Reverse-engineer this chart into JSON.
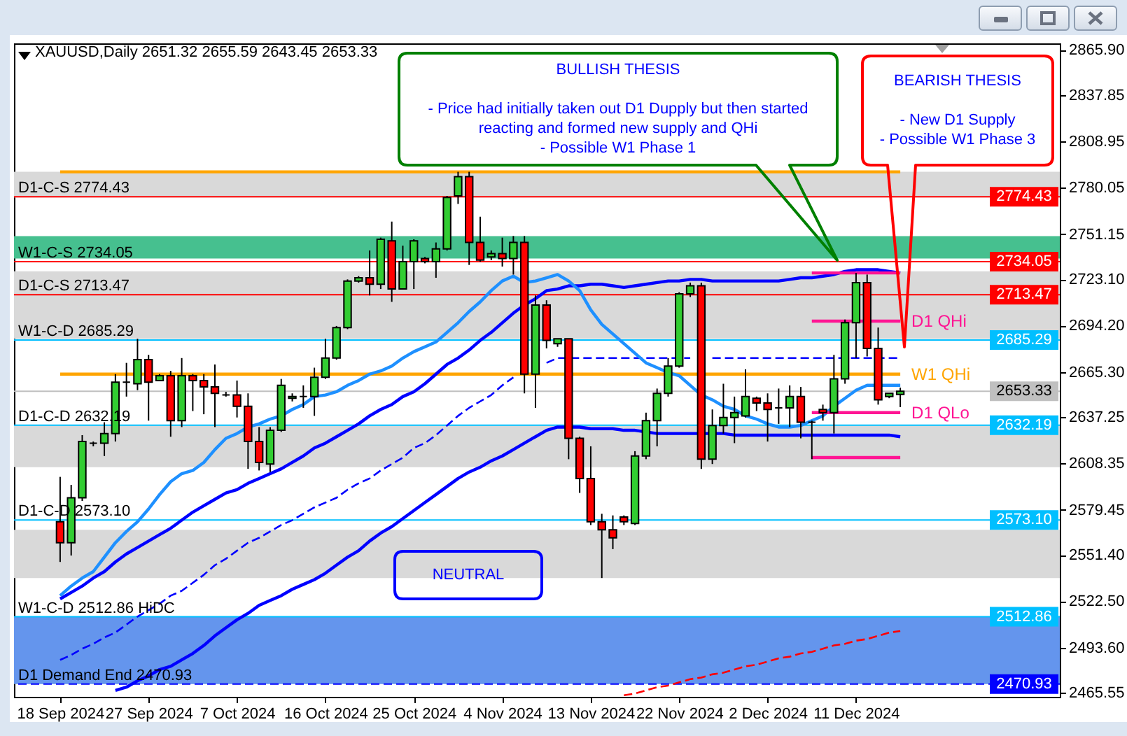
{
  "chart_data": {
    "type": "candlestick",
    "title": "XAUUSD,Daily 2651.32 2655.59 2643.45 2653.33",
    "categories": [
      "18 Sep 2024",
      null,
      null,
      null,
      null,
      null,
      null,
      null,
      "27 Sep 2024",
      null,
      null,
      null,
      null,
      null,
      null,
      null,
      "7 Oct 2024",
      null,
      null,
      null,
      null,
      null,
      null,
      null,
      "16 Oct 2024",
      null,
      null,
      null,
      null,
      null,
      null,
      null,
      "25 Oct 2024",
      null,
      null,
      null,
      null,
      null,
      null,
      null,
      "4 Nov 2024",
      null,
      null,
      null,
      null,
      null,
      null,
      null,
      "13 Nov 2024",
      null,
      null,
      null,
      null,
      null,
      null,
      null,
      "22 Nov 2024",
      null,
      null,
      null,
      null,
      null,
      null,
      null,
      "2 Dec 2024",
      null,
      null,
      null,
      null,
      null,
      null,
      null,
      "11 Dec 2024",
      null,
      null,
      null,
      null
    ],
    "ohlc": [
      [
        2572,
        2600,
        2547,
        2559
      ],
      [
        2559,
        2595,
        2551,
        2587
      ],
      [
        2587,
        2626,
        2585,
        2622
      ],
      [
        2621,
        2622,
        2619,
        2621
      ],
      [
        2621,
        2634,
        2613,
        2627
      ],
      [
        2627,
        2664,
        2622,
        2659
      ],
      [
        2659,
        2671,
        2650,
        2659
      ],
      [
        2658,
        2686,
        2654,
        2673
      ],
      [
        2673,
        2676,
        2635,
        2659
      ],
      [
        2660,
        2664,
        2660,
        2663
      ],
      [
        2663,
        2666,
        2625,
        2635
      ],
      [
        2635,
        2674,
        2631,
        2663
      ],
      [
        2663,
        2664,
        2641,
        2660
      ],
      [
        2660,
        2664,
        2639,
        2656
      ],
      [
        2656,
        2670,
        2631,
        2652
      ],
      [
        2651,
        2653,
        2650,
        2651
      ],
      [
        2651,
        2660,
        2637,
        2644
      ],
      [
        2644,
        2652,
        2605,
        2622
      ],
      [
        2622,
        2631,
        2604,
        2609
      ],
      [
        2608,
        2631,
        2603,
        2629
      ],
      [
        2629,
        2661,
        2628,
        2657
      ],
      [
        2649,
        2652,
        2647,
        2650
      ],
      [
        2650,
        2657,
        2643,
        2650
      ],
      [
        2650,
        2668,
        2638,
        2662
      ],
      [
        2662,
        2686,
        2661,
        2674
      ],
      [
        2674,
        2694,
        2673,
        2693
      ],
      [
        2693,
        2723,
        2692,
        2722
      ],
      [
        2722,
        2725,
        2721,
        2724
      ],
      [
        2724,
        2741,
        2713,
        2720
      ],
      [
        2720,
        2749,
        2717,
        2748
      ],
      [
        2747,
        2759,
        2709,
        2717
      ],
      [
        2717,
        2744,
        2717,
        2734
      ],
      [
        2734,
        2748,
        2717,
        2747
      ],
      [
        2736,
        2737,
        2733,
        2734
      ],
      [
        2734,
        2746,
        2724,
        2742
      ],
      [
        2742,
        2775,
        2741,
        2774
      ],
      [
        2775,
        2790,
        2770,
        2787
      ],
      [
        2787,
        2790,
        2732,
        2746
      ],
      [
        2746,
        2762,
        2734,
        2735
      ],
      [
        2737,
        2741,
        2735,
        2739
      ],
      [
        2739,
        2749,
        2731,
        2736
      ],
      [
        2736,
        2750,
        2726,
        2746
      ],
      [
        2746,
        2750,
        2652,
        2664
      ],
      [
        2664,
        2713,
        2643,
        2707
      ],
      [
        2707,
        2710,
        2680,
        2685
      ],
      [
        2683,
        2686,
        2681,
        2686
      ],
      [
        2686,
        2686,
        2611,
        2624
      ],
      [
        2624,
        2625,
        2590,
        2599
      ],
      [
        2599,
        2619,
        2570,
        2572
      ],
      [
        2572,
        2577,
        2537,
        2567
      ],
      [
        2567,
        2576,
        2555,
        2562
      ],
      [
        2575,
        2576,
        2570,
        2572
      ],
      [
        2571,
        2616,
        2570,
        2613
      ],
      [
        2613,
        2640,
        2611,
        2635
      ],
      [
        2635,
        2655,
        2619,
        2652
      ],
      [
        2652,
        2674,
        2650,
        2669
      ],
      [
        2669,
        2715,
        2668,
        2714
      ],
      [
        2714,
        2721,
        2712,
        2719
      ],
      [
        2719,
        2721,
        2605,
        2611
      ],
      [
        2611,
        2642,
        2608,
        2632
      ],
      [
        2632,
        2658,
        2627,
        2637
      ],
      [
        2637,
        2650,
        2621,
        2640
      ],
      [
        2638,
        2667,
        2637,
        2650
      ],
      [
        2649,
        2650,
        2641,
        2646
      ],
      [
        2646,
        2652,
        2622,
        2642
      ],
      [
        2643,
        2655,
        2633,
        2643
      ],
      [
        2643,
        2657,
        2631,
        2650
      ],
      [
        2650,
        2656,
        2624,
        2634
      ],
      [
        2634,
        2635,
        2611,
        2634
      ],
      [
        2642,
        2645,
        2635,
        2640
      ],
      [
        2640,
        2676,
        2627,
        2661
      ],
      [
        2661,
        2698,
        2658,
        2696
      ],
      [
        2696,
        2727,
        2674,
        2721
      ],
      [
        2721,
        2726,
        2675,
        2680
      ],
      [
        2680,
        2693,
        2645,
        2648
      ],
      [
        2650,
        2652,
        2649,
        2652
      ],
      [
        2651.32,
        2655.59,
        2643.45,
        2653.33
      ]
    ],
    "colors": [
      "#ff0000",
      "#32cd32",
      "#32cd32",
      "#000000",
      "#32cd32",
      "#32cd32",
      "#000000",
      "#32cd32",
      "#ff0000",
      "#32cd32",
      "#ff0000",
      "#32cd32",
      "#ff0000",
      "#ff0000",
      "#ff0000",
      "#000000",
      "#ff0000",
      "#ff0000",
      "#ff0000",
      "#32cd32",
      "#32cd32",
      "#32cd32",
      "#000000",
      "#32cd32",
      "#32cd32",
      "#32cd32",
      "#32cd32",
      "#32cd32",
      "#ff0000",
      "#32cd32",
      "#ff0000",
      "#32cd32",
      "#32cd32",
      "#ff0000",
      "#32cd32",
      "#32cd32",
      "#32cd32",
      "#ff0000",
      "#ff0000",
      "#32cd32",
      "#ff0000",
      "#32cd32",
      "#ff0000",
      "#32cd32",
      "#ff0000",
      "#32cd32",
      "#ff0000",
      "#ff0000",
      "#ff0000",
      "#ff0000",
      "#ff0000",
      "#ff0000",
      "#32cd32",
      "#32cd32",
      "#32cd32",
      "#32cd32",
      "#32cd32",
      "#32cd32",
      "#ff0000",
      "#32cd32",
      "#32cd32",
      "#32cd32",
      "#32cd32",
      "#ff0000",
      "#ff0000",
      "#000000",
      "#32cd32",
      "#ff0000",
      "#000000",
      "#ff0000",
      "#32cd32",
      "#32cd32",
      "#32cd32",
      "#ff0000",
      "#ff0000",
      "#32cd32",
      "#32cd32"
    ],
    "series": [
      {
        "type": "line",
        "color": "#ffa500",
        "values": [
          2790,
          2790,
          2790,
          2790,
          2790,
          2790,
          2790,
          2790,
          2790,
          2790,
          2790,
          2790,
          2790,
          2790,
          2790,
          2790,
          2790,
          2790,
          2790,
          2790,
          2790,
          2790,
          2790,
          2790,
          2790,
          2790,
          2790,
          2790,
          2790,
          2790,
          2790,
          2790,
          2790,
          2790,
          2790,
          2790,
          2790,
          2790,
          2790,
          2790,
          2790,
          2790,
          2790,
          2790,
          2790,
          2790,
          2790,
          2790,
          2790,
          2790,
          2790,
          2790,
          2790,
          2790,
          2790,
          2790,
          2790,
          2790,
          2790,
          2790,
          2790,
          2790,
          2790,
          2790,
          2790,
          2790,
          2790,
          2790,
          2790,
          2790,
          2790,
          2790,
          2790,
          2790,
          2790,
          2790,
          2790
        ]
      },
      {
        "type": "line",
        "name": "W1 QHi",
        "color": "#ffa500",
        "values": [
          2664,
          2664,
          2664,
          2664,
          2664,
          2664,
          2664,
          2664,
          2664,
          2664,
          2664,
          2664,
          2664,
          2664,
          2664,
          2664,
          2664,
          2664,
          2664,
          2664,
          2664,
          2664,
          2664,
          2664,
          2664,
          2664,
          2664,
          2664,
          2664,
          2664,
          2664,
          2664,
          2664,
          2664,
          2664,
          2664,
          2664,
          2664,
          2664,
          2664,
          2664,
          2664,
          2664,
          2664,
          2664,
          2664,
          2664,
          2664,
          2664,
          2664,
          2664,
          2664,
          2664,
          2664,
          2664,
          2664,
          2664,
          2664,
          2664,
          2664,
          2664,
          2664,
          2664,
          2664,
          2664,
          2664,
          2664,
          2664,
          2664,
          2664,
          2664,
          2664,
          2664,
          2664,
          2664,
          2664,
          2664
        ]
      },
      {
        "type": "line",
        "color": "#ff0000",
        "line_style": "dashed",
        "values": [
          null,
          null,
          null,
          null,
          null,
          null,
          null,
          null,
          null,
          null,
          null,
          null,
          null,
          null,
          null,
          null,
          null,
          null,
          null,
          null,
          null,
          null,
          null,
          null,
          null,
          null,
          null,
          null,
          null,
          null,
          null,
          null,
          null,
          null,
          null,
          null,
          null,
          null,
          null,
          null,
          null,
          null,
          null,
          null,
          null,
          null,
          null,
          null,
          null,
          null,
          null,
          2464,
          2465,
          2467,
          2469,
          2470,
          2472,
          2474,
          2475,
          2477,
          2478,
          2480,
          2482,
          2483,
          2485,
          2487,
          2488,
          2490,
          2491,
          2493,
          2495,
          2496,
          2498,
          2499,
          2501,
          2503,
          2504
        ]
      },
      {
        "type": "line",
        "color": "#0000ff",
        "line_style": "dashed",
        "values": [
          2486,
          2489,
          2493,
          2496,
          2500,
          2503,
          2508,
          2513,
          2517,
          2521,
          2526,
          2529,
          2534,
          2539,
          2545,
          2549,
          2554,
          2559,
          2562,
          2566,
          2570,
          2573,
          2577,
          2581,
          2584,
          2587,
          2592,
          2596,
          2599,
          2604,
          2608,
          2612,
          2618,
          2621,
          2626,
          2632,
          2638,
          2643,
          2647,
          2651,
          2657,
          2662,
          null,
          null,
          2671,
          2674,
          2674,
          2674,
          2674,
          2674,
          2674,
          2674,
          2674,
          2674,
          2674,
          2674,
          2674,
          2674,
          null,
          2674,
          2674,
          2674,
          2674,
          2674,
          2674,
          2674,
          2674,
          2674,
          2674,
          2674,
          2674,
          2674,
          2674,
          2674,
          2674,
          2674,
          2674
        ]
      },
      {
        "type": "line",
        "color": "#0000ff",
        "values": [
          null,
          null,
          null,
          null,
          null,
          2467,
          2469,
          2473,
          2476,
          2480,
          2482,
          2486,
          2490,
          2495,
          2501,
          2506,
          2511,
          2515,
          2520,
          2523,
          2526,
          2530,
          2533,
          2536,
          2540,
          2545,
          2550,
          2554,
          2560,
          2565,
          2569,
          2574,
          2579,
          2584,
          2589,
          2594,
          2599,
          2603,
          2606,
          2610,
          2613,
          2617,
          2621,
          2625,
          2629,
          2631,
          2631,
          2631,
          2630,
          2630,
          2630,
          2629,
          2629,
          2628,
          2627,
          2627,
          2627,
          2627,
          2627,
          2627,
          2627,
          2626,
          2626,
          2626,
          2626,
          2626,
          2626,
          2626,
          2626,
          2626,
          2626,
          2626,
          2626,
          2626,
          2626,
          2626,
          2625
        ]
      },
      {
        "type": "line",
        "color": "#0000ff",
        "values": [
          2524,
          2528,
          2532,
          2537,
          2541,
          2547,
          2552,
          2556,
          2560,
          2564,
          2568,
          2573,
          2578,
          2582,
          2586,
          2590,
          2592,
          2596,
          2599,
          2602,
          2605,
          2609,
          2613,
          2618,
          2621,
          2625,
          2629,
          2633,
          2638,
          2642,
          2645,
          2650,
          2653,
          2658,
          2664,
          2670,
          2674,
          2679,
          2685,
          2690,
          2696,
          2702,
          2707,
          2711,
          2716,
          2717,
          2719,
          2719,
          2720,
          2720,
          2719,
          2718,
          2719,
          2720,
          2721,
          2722,
          2722,
          2723,
          2723,
          2722,
          2722,
          2722,
          2722,
          2722,
          2722,
          2722,
          2723,
          2724,
          2724,
          2725,
          2726,
          2728,
          2729,
          2729,
          2729,
          2728,
          2727
        ]
      },
      {
        "type": "line",
        "color": "#1e90ff",
        "values": [
          2526,
          2532,
          2537,
          2541,
          2550,
          2559,
          2566,
          2572,
          2580,
          2589,
          2597,
          2602,
          2604,
          2609,
          2617,
          2624,
          2627,
          2631,
          2633,
          2636,
          2638,
          2642,
          2645,
          2650,
          2651,
          2653,
          2657,
          2660,
          2664,
          2666,
          2669,
          2674,
          2678,
          2681,
          2684,
          2690,
          2696,
          2703,
          2709,
          2716,
          2722,
          2725,
          2721,
          2722,
          2724,
          2726,
          2722,
          2716,
          2704,
          2695,
          2689,
          2683,
          2677,
          2671,
          2668,
          2665,
          2663,
          2657,
          2651,
          2648,
          2644,
          2642,
          2638,
          2636,
          2633,
          2631,
          2631,
          2632,
          2635,
          2638,
          2644,
          2649,
          2654,
          2657,
          2657,
          2657,
          2657
        ]
      },
      {
        "type": "line",
        "color": "#ff1493",
        "values": [
          null,
          null,
          null,
          null,
          null,
          null,
          null,
          null,
          null,
          null,
          null,
          null,
          null,
          null,
          null,
          null,
          null,
          null,
          null,
          null,
          null,
          null,
          null,
          null,
          null,
          null,
          null,
          null,
          null,
          null,
          null,
          null,
          null,
          null,
          null,
          null,
          null,
          null,
          null,
          null,
          null,
          null,
          null,
          null,
          null,
          null,
          null,
          null,
          null,
          null,
          null,
          null,
          null,
          null,
          null,
          null,
          null,
          null,
          null,
          null,
          null,
          null,
          null,
          null,
          null,
          null,
          null,
          null,
          2727,
          2727,
          2727,
          2727,
          2727,
          2727,
          2727,
          2727,
          2727
        ]
      },
      {
        "type": "line",
        "name": "D1 QHi",
        "color": "#ff1493",
        "values": [
          null,
          null,
          null,
          null,
          null,
          null,
          null,
          null,
          null,
          null,
          null,
          null,
          null,
          null,
          null,
          null,
          null,
          null,
          null,
          null,
          null,
          null,
          null,
          null,
          null,
          null,
          null,
          null,
          null,
          null,
          null,
          null,
          null,
          null,
          null,
          null,
          null,
          null,
          null,
          null,
          null,
          null,
          null,
          null,
          null,
          null,
          null,
          null,
          null,
          null,
          null,
          null,
          null,
          null,
          null,
          null,
          null,
          null,
          null,
          null,
          null,
          null,
          null,
          null,
          null,
          null,
          null,
          null,
          2697,
          2697,
          2697,
          2697,
          2697,
          2697,
          2697,
          2697,
          2697
        ]
      },
      {
        "type": "line",
        "name": "D1 QLo",
        "color": "#ff1493",
        "values": [
          null,
          null,
          null,
          null,
          null,
          null,
          null,
          null,
          null,
          null,
          null,
          null,
          null,
          null,
          null,
          null,
          null,
          null,
          null,
          null,
          null,
          null,
          null,
          null,
          null,
          null,
          null,
          null,
          null,
          null,
          null,
          null,
          null,
          null,
          null,
          null,
          null,
          null,
          null,
          null,
          null,
          null,
          null,
          null,
          null,
          null,
          null,
          null,
          null,
          null,
          null,
          null,
          null,
          null,
          null,
          null,
          null,
          null,
          null,
          null,
          null,
          null,
          null,
          null,
          null,
          null,
          null,
          null,
          2640,
          2640,
          2640,
          2640,
          2640,
          2640,
          2640,
          2640,
          2640
        ]
      },
      {
        "type": "line",
        "color": "#ff1493",
        "values": [
          null,
          null,
          null,
          null,
          null,
          null,
          null,
          null,
          null,
          null,
          null,
          null,
          null,
          null,
          null,
          null,
          null,
          null,
          null,
          null,
          null,
          null,
          null,
          null,
          null,
          null,
          null,
          null,
          null,
          null,
          null,
          null,
          null,
          null,
          null,
          null,
          null,
          null,
          null,
          null,
          null,
          null,
          null,
          null,
          null,
          null,
          null,
          null,
          null,
          null,
          null,
          null,
          null,
          null,
          null,
          null,
          null,
          null,
          null,
          null,
          null,
          null,
          null,
          null,
          null,
          null,
          null,
          null,
          2612,
          2612,
          2612,
          2612,
          2612,
          2612,
          2612,
          2612,
          2612
        ]
      }
    ],
    "ylim": [
      2463,
      2870
    ],
    "yticks": [
      {
        "value": 2865.9,
        "label": "2865.90"
      },
      2837.85,
      2808.95,
      2780.05,
      2751.15,
      {
        "value": 2723.1,
        "label": "2723.10"
      },
      {
        "value": 2694.2,
        "label": "2694.20"
      },
      {
        "value": 2665.3,
        "label": "2665.30"
      },
      2637.25,
      2608.35,
      2579.45,
      {
        "value": 2551.4,
        "label": "2551.40"
      },
      {
        "value": 2522.5,
        "label": "2522.50"
      },
      {
        "value": 2493.6,
        "label": "2493.60"
      },
      2465.55
    ],
    "bands": [
      {
        "axis": "y",
        "from": 2471,
        "to": 2513,
        "color": "#6495ed"
      },
      {
        "axis": "y",
        "from": 2537,
        "to": 2567,
        "color": "#d9d9d9"
      },
      {
        "axis": "y",
        "from": 2606,
        "to": 2632,
        "color": "#d9d9d9"
      },
      {
        "axis": "y",
        "from": 2686,
        "to": 2728,
        "color": "#d9d9d9"
      },
      {
        "axis": "y",
        "from": 2736,
        "to": 2750,
        "color": "#46c08f"
      },
      {
        "axis": "y",
        "from": 2774,
        "to": 2790,
        "color": "#d9d9d9"
      }
    ],
    "ref_lines": [
      {
        "axis": "y",
        "value": 2774.43,
        "label": "2774.43",
        "color": "#ff0000"
      },
      {
        "axis": "y",
        "value": 2734.05,
        "label": "2734.05",
        "color": "#ff0000"
      },
      {
        "axis": "y",
        "value": 2713.47,
        "label": "2713.47",
        "color": "#ff0000"
      },
      {
        "axis": "y",
        "value": 2685.29,
        "label": "2685.29",
        "color": "#00bfff"
      },
      {
        "axis": "y",
        "value": 2653.33,
        "label": "2653.33",
        "color": "#c0c0c0"
      },
      {
        "axis": "y",
        "value": 2632.19,
        "label": "2632.19",
        "color": "#00bfff"
      },
      {
        "axis": "y",
        "value": 2573.1,
        "label": "2573.10",
        "color": "#00bfff"
      },
      {
        "axis": "y",
        "value": 2512.86,
        "label": "2512.86",
        "color": "#00bfff"
      },
      {
        "axis": "y",
        "value": 2470.93,
        "label": "2470.93",
        "color": "#0000ff",
        "line_style": "dashed"
      }
    ],
    "annotations": [
      "BULLISH THESIS\n\n- Price had initially taken out D1 Dupply but then started reacting and formed new supply and QHi\n- Possible W1 Phase 1",
      "BEARISH THESIS\n\n- New D1 Supply\n- Possible W1 Phase 3",
      "NEUTRAL",
      {
        "text": "D1-C-S 2774.43",
        "y": 2774.43
      },
      {
        "text": "W1-C-S 2734.05",
        "y": 2734.05
      },
      {
        "text": "D1-C-S 2713.47",
        "y": 2713.47
      },
      {
        "text": "W1-C-D 2685.29",
        "y": 2685.29
      },
      {
        "text": "D1-C-D 2632.19",
        "y": 2632.19
      },
      {
        "text": "D1-C-D 2573.10",
        "y": 2573.1
      },
      {
        "text": "W1-C-D 2512.86 HiDC",
        "y": 2512.86
      },
      {
        "text": "D1 Demand End 2470.93",
        "y": 2470.93
      }
    ]
  }
}
